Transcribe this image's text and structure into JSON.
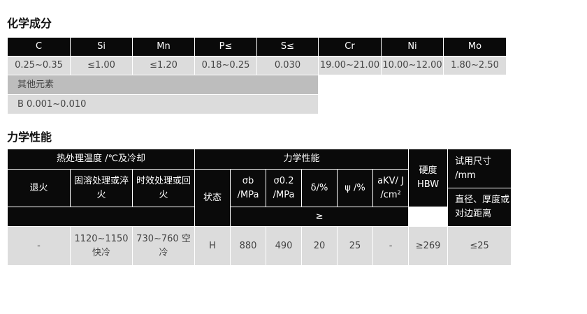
{
  "chemical": {
    "title": "化学成分",
    "headers": [
      "C",
      "Si",
      "Mn",
      "P≤",
      "S≤",
      "Cr",
      "Ni",
      "Mo"
    ],
    "values": [
      "0.25~0.35",
      "≤1.00",
      "≤1.20",
      "0.18~0.25",
      "0.030",
      "19.00~21.00",
      "10.00~12.00",
      "1.80~2.50"
    ],
    "other_label": "其他元素",
    "other_value": "B 0.001~0.010"
  },
  "mechanical": {
    "title": "力学性能",
    "heat_treatment": "热处理温度 /℃及冷却",
    "mech_props": "力学性能",
    "annealing": "退火",
    "solution": "固溶处理或淬火",
    "aging": "时效处理或回火",
    "state": "状态",
    "sigma_b": "σb /MPa",
    "sigma_02": "σ0.2 /MPa",
    "delta": "δ/%",
    "psi": "ψ /%",
    "akv": "aKV/ J /cm²",
    "ge": "≥",
    "hardness": "硬度 HBW",
    "size": "试用尺寸 /mm",
    "size_sub": "直径、厚度或对边距离",
    "row": {
      "annealing": "-",
      "solution": "1120~1150 快冷",
      "aging": "730~760 空冷",
      "state": "H",
      "sigma_b": "880",
      "sigma_02": "490",
      "delta": "20",
      "psi": "25",
      "akv": "-",
      "hardness": "≥269",
      "size": "≤25"
    }
  }
}
